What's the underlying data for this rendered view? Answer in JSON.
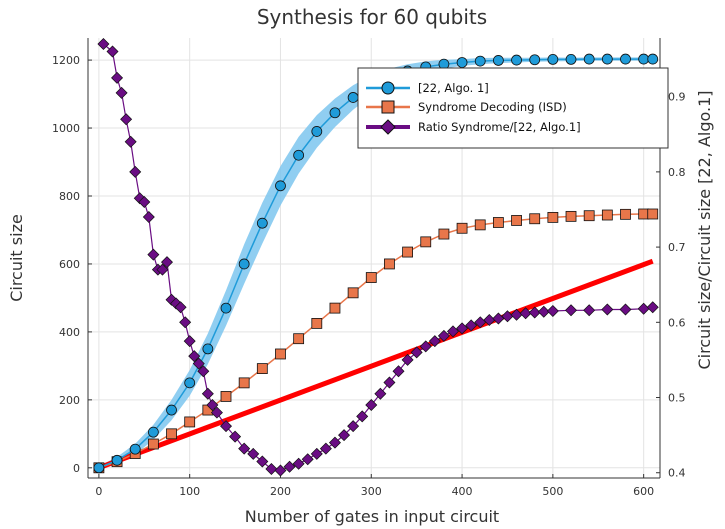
{
  "chart_data": {
    "type": "line",
    "title": "Synthesis for 60 qubits",
    "xlabel": "Number of gates in input circuit",
    "ylabel": "Circuit size",
    "y2label": "Circuit size/Circuit size [22, Algo.1]",
    "xlim": [
      -12,
      618
    ],
    "ylim": [
      -30,
      1265
    ],
    "y2lim": [
      0.393,
      0.978
    ],
    "xticks": [
      0,
      100,
      200,
      300,
      400,
      500,
      600
    ],
    "yticks": [
      0,
      200,
      400,
      600,
      800,
      1000,
      1200
    ],
    "y2ticks": [
      0.4,
      0.5,
      0.6,
      0.7,
      0.8,
      0.9
    ],
    "grid": true,
    "legend_position": "top-right",
    "series": [
      {
        "name": "[22, Algo. 1]",
        "axis": "left",
        "marker": "circle",
        "color": "#1f9bd9",
        "band_color": "#7cc6ee",
        "x": [
          0,
          20,
          40,
          60,
          80,
          100,
          120,
          140,
          160,
          180,
          200,
          220,
          240,
          260,
          280,
          300,
          320,
          340,
          360,
          380,
          400,
          420,
          440,
          460,
          480,
          500,
          520,
          540,
          560,
          580,
          600,
          610
        ],
        "y": [
          0,
          22,
          55,
          105,
          170,
          250,
          350,
          470,
          600,
          720,
          830,
          920,
          990,
          1045,
          1090,
          1125,
          1150,
          1168,
          1180,
          1188,
          1193,
          1197,
          1199,
          1200,
          1201,
          1202,
          1202,
          1203,
          1203,
          1203,
          1203,
          1203
        ],
        "band_halfwidth": [
          5,
          10,
          16,
          22,
          30,
          38,
          45,
          52,
          58,
          60,
          58,
          54,
          48,
          42,
          36,
          30,
          25,
          20,
          16,
          13,
          10,
          9,
          8,
          7,
          6,
          6,
          5,
          5,
          5,
          5,
          5,
          5
        ]
      },
      {
        "name": "Syndrome Decoding (ISD)",
        "axis": "left",
        "marker": "square",
        "color": "#e8764a",
        "x": [
          0,
          20,
          40,
          60,
          80,
          100,
          120,
          140,
          160,
          180,
          200,
          220,
          240,
          260,
          280,
          300,
          320,
          340,
          360,
          380,
          400,
          420,
          440,
          460,
          480,
          500,
          520,
          540,
          560,
          580,
          600,
          610
        ],
        "y": [
          0,
          18,
          42,
          70,
          100,
          135,
          170,
          210,
          250,
          292,
          335,
          380,
          425,
          470,
          515,
          560,
          600,
          635,
          665,
          688,
          705,
          715,
          722,
          728,
          733,
          737,
          740,
          742,
          744,
          746,
          747,
          747
        ]
      },
      {
        "name": "",
        "axis": "left",
        "marker": "none",
        "color": "#ff0000",
        "x": [
          0,
          610
        ],
        "y": [
          0,
          608
        ]
      },
      {
        "name": "Ratio Syndrome/[22, Algo.1]",
        "axis": "right",
        "marker": "diamond",
        "color": "#6a0d83",
        "x": [
          5,
          15,
          20,
          25,
          30,
          35,
          40,
          45,
          50,
          55,
          60,
          65,
          70,
          75,
          80,
          85,
          90,
          95,
          100,
          105,
          110,
          115,
          120,
          125,
          130,
          140,
          150,
          160,
          170,
          180,
          190,
          200,
          210,
          220,
          230,
          240,
          250,
          260,
          270,
          280,
          290,
          300,
          310,
          320,
          330,
          340,
          350,
          360,
          370,
          380,
          390,
          400,
          410,
          420,
          430,
          440,
          450,
          460,
          470,
          480,
          490,
          500,
          520,
          540,
          560,
          580,
          600,
          610
        ],
        "y": [
          0.97,
          0.96,
          0.925,
          0.905,
          0.87,
          0.84,
          0.8,
          0.765,
          0.76,
          0.74,
          0.69,
          0.67,
          0.67,
          0.68,
          0.63,
          0.625,
          0.62,
          0.6,
          0.575,
          0.555,
          0.545,
          0.535,
          0.505,
          0.49,
          0.48,
          0.462,
          0.448,
          0.432,
          0.425,
          0.415,
          0.405,
          0.403,
          0.408,
          0.412,
          0.418,
          0.425,
          0.432,
          0.44,
          0.45,
          0.462,
          0.475,
          0.49,
          0.505,
          0.52,
          0.535,
          0.55,
          0.56,
          0.568,
          0.575,
          0.582,
          0.588,
          0.592,
          0.596,
          0.6,
          0.603,
          0.605,
          0.608,
          0.61,
          0.612,
          0.613,
          0.614,
          0.615,
          0.616,
          0.616,
          0.617,
          0.617,
          0.618,
          0.62
        ]
      }
    ]
  }
}
